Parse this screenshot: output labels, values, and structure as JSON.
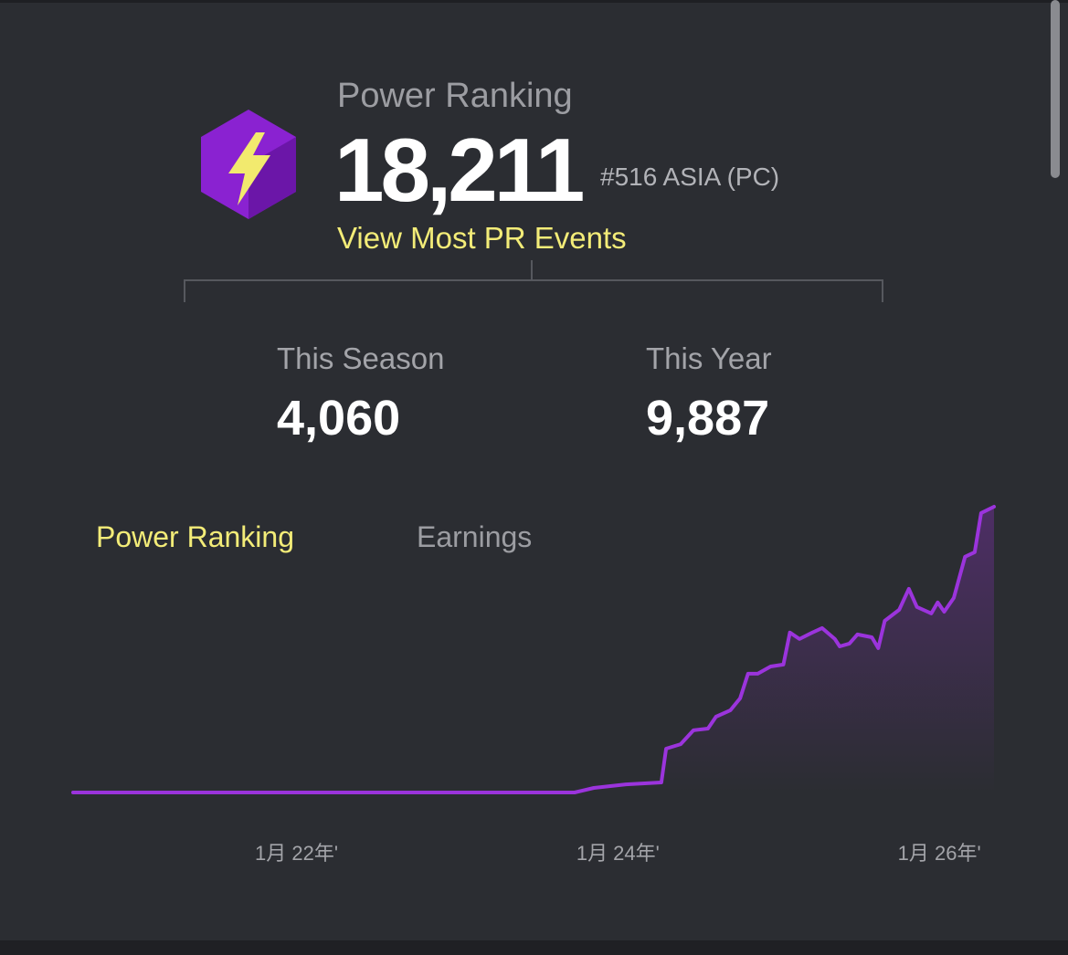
{
  "header": {
    "title": "Power Ranking",
    "score": "18,211",
    "region_rank": "#516 ASIA (PC)",
    "link": "View Most PR Events"
  },
  "stats": [
    {
      "label": "This Season",
      "value": "4,060"
    },
    {
      "label": "This Year",
      "value": "9,887"
    }
  ],
  "tabs": [
    "Power Ranking",
    "Earnings"
  ],
  "chart_data": {
    "type": "line",
    "color": "#9b34dc",
    "area": true,
    "x": [
      2020.61,
      2023.73,
      2023.85,
      2024.05,
      2024.27,
      2024.3,
      2024.39,
      2024.47,
      2024.56,
      2024.61,
      2024.7,
      2024.76,
      2024.81,
      2024.87,
      2024.95,
      2025.03,
      2025.07,
      2025.13,
      2025.21,
      2025.27,
      2025.35,
      2025.38,
      2025.44,
      2025.49,
      2025.58,
      2025.62,
      2025.66,
      2025.75,
      2025.81,
      2025.86,
      2025.95,
      2025.99,
      2026.03,
      2026.09,
      2026.16,
      2026.22,
      2026.26,
      2026.34
    ],
    "values": [
      0,
      0,
      290,
      520,
      640,
      2790,
      3080,
      3960,
      4070,
      4830,
      5240,
      6000,
      7570,
      7570,
      8030,
      8150,
      10190,
      9780,
      10190,
      10480,
      9780,
      9310,
      9490,
      10070,
      9890,
      9200,
      10940,
      11640,
      12980,
      11820,
      11410,
      12110,
      11520,
      12400,
      15020,
      15310,
      17810,
      18210
    ],
    "xlim": [
      2020.61,
      2026.34
    ],
    "ylim": [
      0,
      18500
    ],
    "xticks": [
      {
        "value": 2022,
        "label": "1月 22年'"
      },
      {
        "value": 2024,
        "label": "1月 24年'"
      },
      {
        "value": 2026,
        "label": "1月 26年'"
      }
    ]
  }
}
